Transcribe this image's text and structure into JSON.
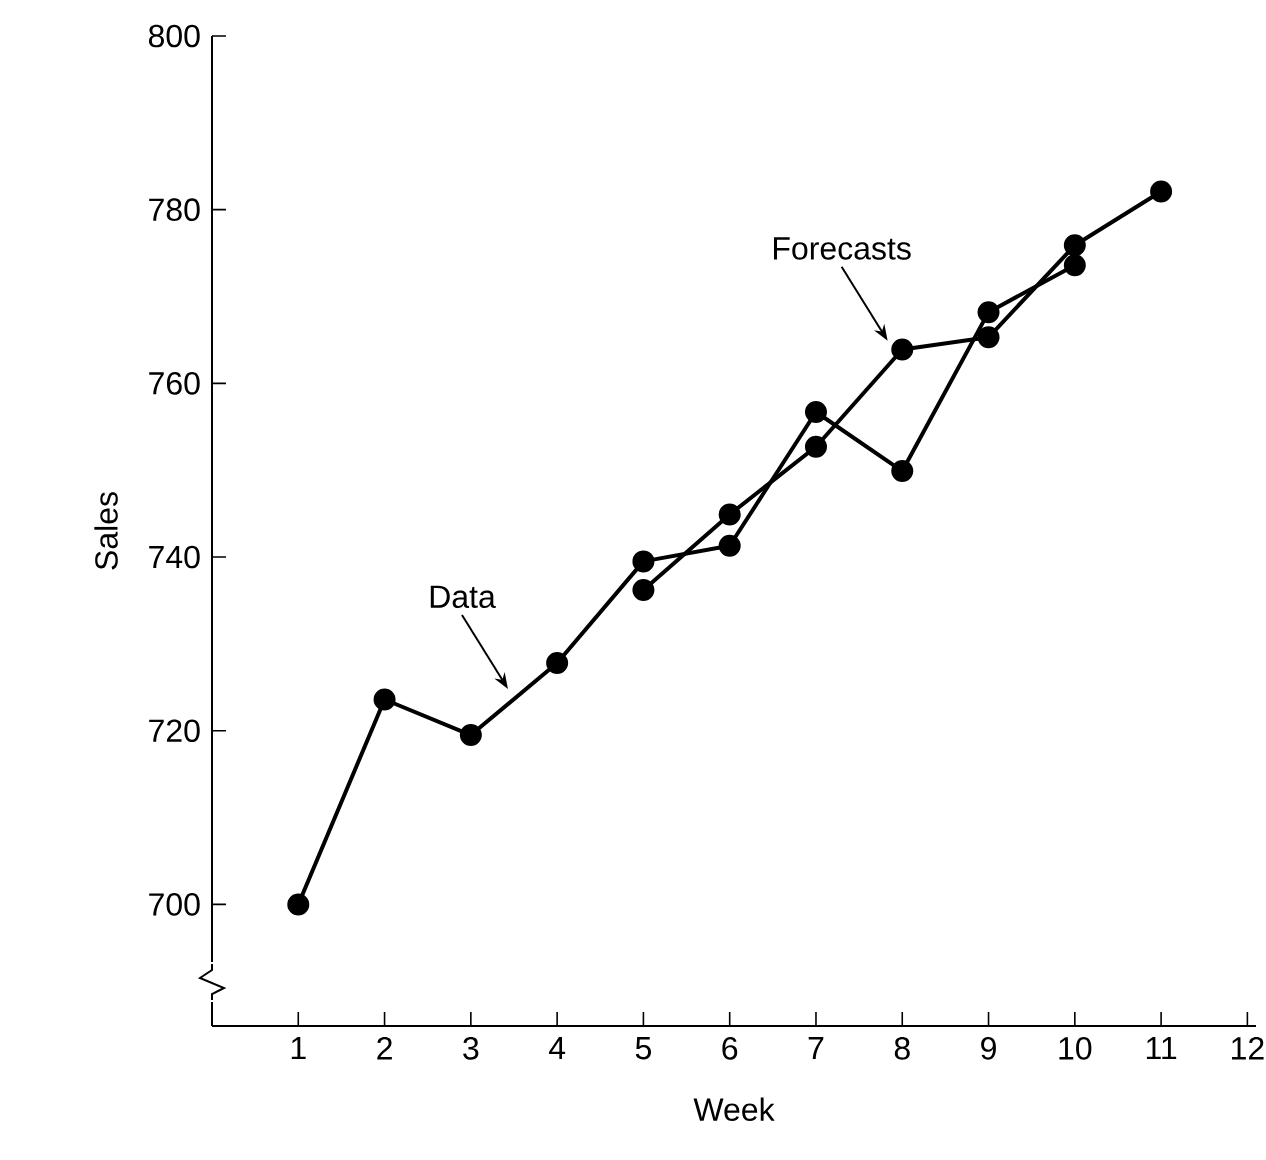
{
  "chart_data": {
    "type": "line",
    "xlabel": "Week",
    "ylabel": "Sales",
    "xlim": [
      0,
      12.1
    ],
    "xticks": [
      1,
      2,
      3,
      4,
      5,
      6,
      7,
      8,
      9,
      10,
      11,
      12
    ],
    "ylim": [
      686,
      800
    ],
    "yticks": [
      700,
      720,
      740,
      760,
      780,
      800
    ],
    "marker": "circle",
    "line_style": "solid",
    "grid": false,
    "legend": false,
    "series": [
      {
        "name": "Data",
        "x": [
          1,
          2,
          3,
          4,
          5,
          6,
          7,
          8,
          9,
          10
        ],
        "values": [
          700,
          723.6,
          719.5,
          727.8,
          739.5,
          741.3,
          756.7,
          749.9,
          768.2,
          773.6
        ],
        "color": "#000000"
      },
      {
        "name": "Forecasts",
        "x": [
          5,
          6,
          7,
          8,
          9,
          10,
          11
        ],
        "values": [
          736.2,
          744.9,
          752.7,
          763.9,
          765.3,
          775.9,
          782.1
        ],
        "color": "#000000"
      }
    ]
  }
}
